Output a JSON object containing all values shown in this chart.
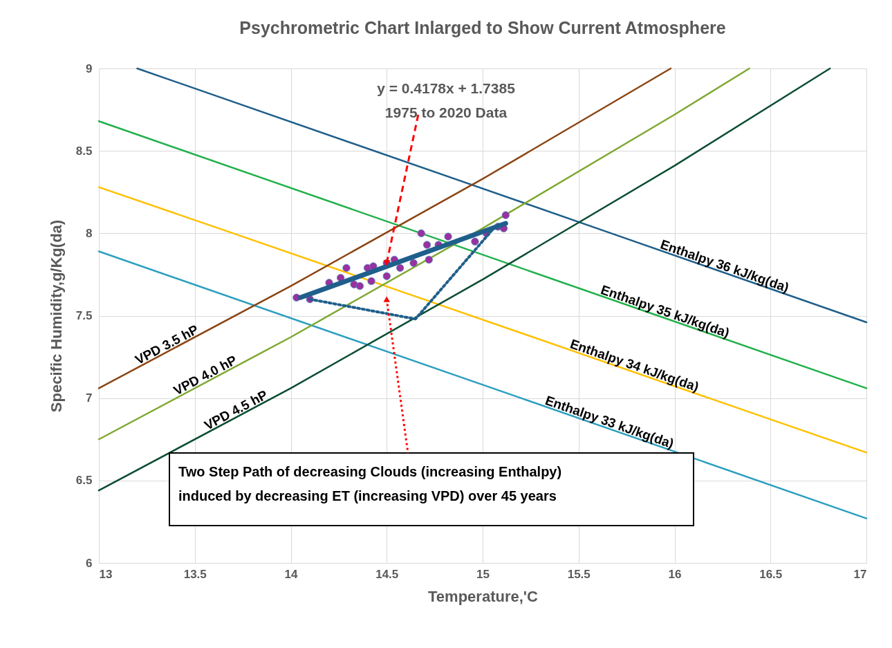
{
  "chart_data": {
    "type": "line",
    "title": "Psychrometric Chart Inlarged to Show Current Atmosphere",
    "xlabel": "Temperature,'C",
    "ylabel": "Specific Humidity,g/Kg(da)",
    "xlim": [
      13,
      17
    ],
    "ylim": [
      6,
      9
    ],
    "xticks": [
      13,
      13.5,
      14,
      14.5,
      15,
      15.5,
      16,
      16.5,
      17
    ],
    "yticks": [
      6,
      6.5,
      7,
      7.5,
      8,
      8.5,
      9
    ],
    "grid": true,
    "marker": "none",
    "series": [
      {
        "name": "Enthalpy 36 kJ/kg(da)",
        "color": "#1f5f8b",
        "x": [
          13.2,
          15.67,
          17
        ],
        "values": [
          9,
          8,
          7.46
        ]
      },
      {
        "name": "Enthalpy 35 kJ/kg(da)",
        "color": "#22b14c",
        "x": [
          13,
          17
        ],
        "values": [
          8.68,
          7.06
        ]
      },
      {
        "name": "Enthalpy 34 kJ/kg(da)",
        "color": "#ffc000",
        "x": [
          13,
          13.7,
          16.18,
          17
        ],
        "values": [
          8.28,
          8,
          7,
          6.67
        ]
      },
      {
        "name": "Enthalpy 33 kJ/kg(da)",
        "color": "#2e9fc0",
        "x": [
          13,
          15.2,
          17
        ],
        "values": [
          7.89,
          7,
          6.27
        ]
      },
      {
        "name": "VPD 3.5 hP",
        "color": "#8b4513",
        "x": [
          13,
          14,
          15,
          15.98
        ],
        "values": [
          7.06,
          7.68,
          8.33,
          9
        ]
      },
      {
        "name": "VPD 4.0 hP",
        "color": "#7fa832",
        "x": [
          13,
          14,
          15,
          16,
          16.39
        ],
        "values": [
          6.75,
          7.37,
          8.03,
          8.72,
          9
        ]
      },
      {
        "name": "VPD 4.5 hP",
        "color": "#0b4d32",
        "x": [
          13,
          14,
          15,
          16,
          16.81
        ],
        "values": [
          6.44,
          7.06,
          7.72,
          8.41,
          9
        ]
      },
      {
        "type": "scatter",
        "marker": "circle",
        "color": "#9b30a0",
        "x": [
          14.03,
          14.1,
          14.2,
          14.29,
          14.26,
          14.33,
          14.36,
          14.4,
          14.43,
          14.42,
          14.5,
          14.5,
          14.54,
          14.57,
          14.64,
          14.68,
          14.71,
          14.72,
          14.77,
          14.82,
          14.96,
          15.02,
          15.08,
          15.11,
          15.12
        ],
        "values": [
          7.61,
          7.6,
          7.7,
          7.79,
          7.73,
          7.69,
          7.68,
          7.79,
          7.8,
          7.71,
          7.74,
          7.82,
          7.84,
          7.79,
          7.82,
          8,
          7.93,
          7.84,
          7.93,
          7.98,
          7.95,
          8,
          8.04,
          8.03,
          8.11
        ]
      },
      {
        "type": "line",
        "color": "#1f5f8b",
        "x": [
          14.05,
          15.12
        ],
        "values": [
          7.61,
          8.06
        ]
      },
      {
        "type": "line",
        "line_style": "dotted",
        "color": "#1f5f8b",
        "x": [
          14.1,
          14.65,
          15.05
        ],
        "values": [
          7.6,
          7.48,
          8.02
        ]
      }
    ],
    "annotations": [
      {
        "text": "y = 0.4178x + 1.7385\n1975 to 2020 Data",
        "x": 14.5,
        "y": 7.82
      },
      {
        "text": "Two Step Path of decreasing Clouds (increasing Enthalpy)\ninduced by decreasing ET (increasing VPD) over 45 years",
        "x": 14.5,
        "y": 7.6
      }
    ]
  }
}
